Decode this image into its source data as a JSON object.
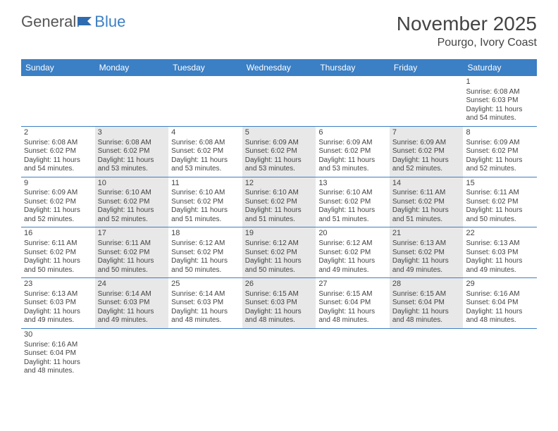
{
  "logo": {
    "text1": "General",
    "text2": "Blue"
  },
  "title": "November 2025",
  "location": "Pourgo, Ivory Coast",
  "colors": {
    "header_bg": "#3b7fc4",
    "header_fg": "#ffffff",
    "shaded_bg": "#e8e8e8",
    "border": "#3b7fc4",
    "text": "#444444"
  },
  "day_names": [
    "Sunday",
    "Monday",
    "Tuesday",
    "Wednesday",
    "Thursday",
    "Friday",
    "Saturday"
  ],
  "weeks": [
    [
      {
        "empty": true
      },
      {
        "empty": true
      },
      {
        "empty": true
      },
      {
        "empty": true
      },
      {
        "empty": true
      },
      {
        "empty": true
      },
      {
        "num": "1",
        "sunrise": "Sunrise: 6:08 AM",
        "sunset": "Sunset: 6:03 PM",
        "day1": "Daylight: 11 hours",
        "day2": "and 54 minutes.",
        "shaded": false
      }
    ],
    [
      {
        "num": "2",
        "sunrise": "Sunrise: 6:08 AM",
        "sunset": "Sunset: 6:02 PM",
        "day1": "Daylight: 11 hours",
        "day2": "and 54 minutes.",
        "shaded": false
      },
      {
        "num": "3",
        "sunrise": "Sunrise: 6:08 AM",
        "sunset": "Sunset: 6:02 PM",
        "day1": "Daylight: 11 hours",
        "day2": "and 53 minutes.",
        "shaded": true
      },
      {
        "num": "4",
        "sunrise": "Sunrise: 6:08 AM",
        "sunset": "Sunset: 6:02 PM",
        "day1": "Daylight: 11 hours",
        "day2": "and 53 minutes.",
        "shaded": false
      },
      {
        "num": "5",
        "sunrise": "Sunrise: 6:09 AM",
        "sunset": "Sunset: 6:02 PM",
        "day1": "Daylight: 11 hours",
        "day2": "and 53 minutes.",
        "shaded": true
      },
      {
        "num": "6",
        "sunrise": "Sunrise: 6:09 AM",
        "sunset": "Sunset: 6:02 PM",
        "day1": "Daylight: 11 hours",
        "day2": "and 53 minutes.",
        "shaded": false
      },
      {
        "num": "7",
        "sunrise": "Sunrise: 6:09 AM",
        "sunset": "Sunset: 6:02 PM",
        "day1": "Daylight: 11 hours",
        "day2": "and 52 minutes.",
        "shaded": true
      },
      {
        "num": "8",
        "sunrise": "Sunrise: 6:09 AM",
        "sunset": "Sunset: 6:02 PM",
        "day1": "Daylight: 11 hours",
        "day2": "and 52 minutes.",
        "shaded": false
      }
    ],
    [
      {
        "num": "9",
        "sunrise": "Sunrise: 6:09 AM",
        "sunset": "Sunset: 6:02 PM",
        "day1": "Daylight: 11 hours",
        "day2": "and 52 minutes.",
        "shaded": false
      },
      {
        "num": "10",
        "sunrise": "Sunrise: 6:10 AM",
        "sunset": "Sunset: 6:02 PM",
        "day1": "Daylight: 11 hours",
        "day2": "and 52 minutes.",
        "shaded": true
      },
      {
        "num": "11",
        "sunrise": "Sunrise: 6:10 AM",
        "sunset": "Sunset: 6:02 PM",
        "day1": "Daylight: 11 hours",
        "day2": "and 51 minutes.",
        "shaded": false
      },
      {
        "num": "12",
        "sunrise": "Sunrise: 6:10 AM",
        "sunset": "Sunset: 6:02 PM",
        "day1": "Daylight: 11 hours",
        "day2": "and 51 minutes.",
        "shaded": true
      },
      {
        "num": "13",
        "sunrise": "Sunrise: 6:10 AM",
        "sunset": "Sunset: 6:02 PM",
        "day1": "Daylight: 11 hours",
        "day2": "and 51 minutes.",
        "shaded": false
      },
      {
        "num": "14",
        "sunrise": "Sunrise: 6:11 AM",
        "sunset": "Sunset: 6:02 PM",
        "day1": "Daylight: 11 hours",
        "day2": "and 51 minutes.",
        "shaded": true
      },
      {
        "num": "15",
        "sunrise": "Sunrise: 6:11 AM",
        "sunset": "Sunset: 6:02 PM",
        "day1": "Daylight: 11 hours",
        "day2": "and 50 minutes.",
        "shaded": false
      }
    ],
    [
      {
        "num": "16",
        "sunrise": "Sunrise: 6:11 AM",
        "sunset": "Sunset: 6:02 PM",
        "day1": "Daylight: 11 hours",
        "day2": "and 50 minutes.",
        "shaded": false
      },
      {
        "num": "17",
        "sunrise": "Sunrise: 6:11 AM",
        "sunset": "Sunset: 6:02 PM",
        "day1": "Daylight: 11 hours",
        "day2": "and 50 minutes.",
        "shaded": true
      },
      {
        "num": "18",
        "sunrise": "Sunrise: 6:12 AM",
        "sunset": "Sunset: 6:02 PM",
        "day1": "Daylight: 11 hours",
        "day2": "and 50 minutes.",
        "shaded": false
      },
      {
        "num": "19",
        "sunrise": "Sunrise: 6:12 AM",
        "sunset": "Sunset: 6:02 PM",
        "day1": "Daylight: 11 hours",
        "day2": "and 50 minutes.",
        "shaded": true
      },
      {
        "num": "20",
        "sunrise": "Sunrise: 6:12 AM",
        "sunset": "Sunset: 6:02 PM",
        "day1": "Daylight: 11 hours",
        "day2": "and 49 minutes.",
        "shaded": false
      },
      {
        "num": "21",
        "sunrise": "Sunrise: 6:13 AM",
        "sunset": "Sunset: 6:02 PM",
        "day1": "Daylight: 11 hours",
        "day2": "and 49 minutes.",
        "shaded": true
      },
      {
        "num": "22",
        "sunrise": "Sunrise: 6:13 AM",
        "sunset": "Sunset: 6:03 PM",
        "day1": "Daylight: 11 hours",
        "day2": "and 49 minutes.",
        "shaded": false
      }
    ],
    [
      {
        "num": "23",
        "sunrise": "Sunrise: 6:13 AM",
        "sunset": "Sunset: 6:03 PM",
        "day1": "Daylight: 11 hours",
        "day2": "and 49 minutes.",
        "shaded": false
      },
      {
        "num": "24",
        "sunrise": "Sunrise: 6:14 AM",
        "sunset": "Sunset: 6:03 PM",
        "day1": "Daylight: 11 hours",
        "day2": "and 49 minutes.",
        "shaded": true
      },
      {
        "num": "25",
        "sunrise": "Sunrise: 6:14 AM",
        "sunset": "Sunset: 6:03 PM",
        "day1": "Daylight: 11 hours",
        "day2": "and 48 minutes.",
        "shaded": false
      },
      {
        "num": "26",
        "sunrise": "Sunrise: 6:15 AM",
        "sunset": "Sunset: 6:03 PM",
        "day1": "Daylight: 11 hours",
        "day2": "and 48 minutes.",
        "shaded": true
      },
      {
        "num": "27",
        "sunrise": "Sunrise: 6:15 AM",
        "sunset": "Sunset: 6:04 PM",
        "day1": "Daylight: 11 hours",
        "day2": "and 48 minutes.",
        "shaded": false
      },
      {
        "num": "28",
        "sunrise": "Sunrise: 6:15 AM",
        "sunset": "Sunset: 6:04 PM",
        "day1": "Daylight: 11 hours",
        "day2": "and 48 minutes.",
        "shaded": true
      },
      {
        "num": "29",
        "sunrise": "Sunrise: 6:16 AM",
        "sunset": "Sunset: 6:04 PM",
        "day1": "Daylight: 11 hours",
        "day2": "and 48 minutes.",
        "shaded": false
      }
    ],
    [
      {
        "num": "30",
        "sunrise": "Sunrise: 6:16 AM",
        "sunset": "Sunset: 6:04 PM",
        "day1": "Daylight: 11 hours",
        "day2": "and 48 minutes.",
        "shaded": false
      },
      {
        "empty": true
      },
      {
        "empty": true
      },
      {
        "empty": true
      },
      {
        "empty": true
      },
      {
        "empty": true
      },
      {
        "empty": true
      }
    ]
  ]
}
